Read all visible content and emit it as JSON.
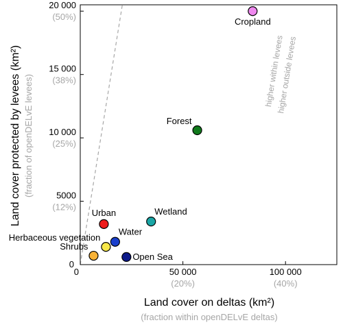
{
  "chart_data": {
    "type": "scatter",
    "xlabel": "Land cover on deltas (km²)",
    "xlabel_sub": "(fraction within openDELvE deltas)",
    "ylabel": "Land cover protected by levees (km²)",
    "ylabel_sub": "(fraction of openDELvE levees)",
    "xlim": [
      0,
      125000
    ],
    "ylim": [
      0,
      20500
    ],
    "x_ticks": [
      {
        "value": 0,
        "label": "0",
        "sub": ""
      },
      {
        "value": 50000,
        "label": "50 000",
        "sub": "(20%)"
      },
      {
        "value": 100000,
        "label": "100 000",
        "sub": "(40%)"
      }
    ],
    "y_ticks": [
      {
        "value": 0,
        "label": "0",
        "sub": ""
      },
      {
        "value": 5000,
        "label": "5000",
        "sub": "(12%)"
      },
      {
        "value": 10000,
        "label": "10 000",
        "sub": "(25%)"
      },
      {
        "value": 15000,
        "label": "15 000",
        "sub": "(38%)"
      },
      {
        "value": 20000,
        "label": "20 000",
        "sub": "(50%)"
      }
    ],
    "reference_line": {
      "style": "dashed",
      "color": "#a6a6a6",
      "label_above": "higher within levees",
      "label_below": "higher outside levees"
    },
    "points": [
      {
        "name": "Cropland",
        "x": 84000,
        "y": 20000,
        "color": "#ee88ee",
        "label_pos": "below"
      },
      {
        "name": "Forest",
        "x": 57000,
        "y": 10600,
        "color": "#117a1c",
        "label_pos": "upper-left"
      },
      {
        "name": "Wetland",
        "x": 34500,
        "y": 3400,
        "color": "#1aa6a6",
        "label_pos": "upper-right"
      },
      {
        "name": "Urban",
        "x": 11500,
        "y": 3200,
        "color": "#ee1b1b",
        "label_pos": "above"
      },
      {
        "name": "Water",
        "x": 17000,
        "y": 1800,
        "color": "#1a3fcc",
        "label_pos": "upper-right"
      },
      {
        "name": "Herbaceous vegetation",
        "x": 12500,
        "y": 1400,
        "color": "#f8e84a",
        "label_pos": "upper-left"
      },
      {
        "name": "Shrubs",
        "x": 6500,
        "y": 700,
        "color": "#f8b236",
        "label_pos": "upper-left"
      },
      {
        "name": "Open Sea",
        "x": 22500,
        "y": 600,
        "color": "#0d1a8a",
        "label_pos": "right"
      }
    ],
    "grid": false
  }
}
